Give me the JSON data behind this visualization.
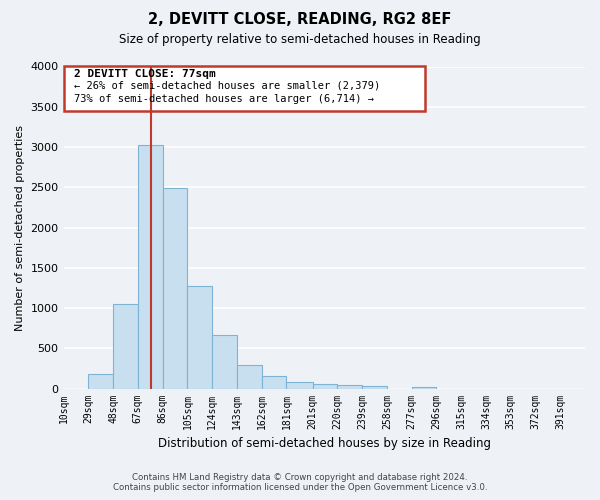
{
  "title": "2, DEVITT CLOSE, READING, RG2 8EF",
  "subtitle": "Size of property relative to semi-detached houses in Reading",
  "xlabel": "Distribution of semi-detached houses by size in Reading",
  "ylabel": "Number of semi-detached properties",
  "bar_color": "#c8dff0",
  "bar_edge_color": "#7fb3d3",
  "background_color": "#eef2f7",
  "grid_color": "#ffffff",
  "categories": [
    "10sqm",
    "29sqm",
    "48sqm",
    "67sqm",
    "86sqm",
    "105sqm",
    "124sqm",
    "143sqm",
    "162sqm",
    "181sqm",
    "201sqm",
    "220sqm",
    "239sqm",
    "258sqm",
    "277sqm",
    "296sqm",
    "315sqm",
    "334sqm",
    "353sqm",
    "372sqm",
    "391sqm"
  ],
  "values": [
    0,
    175,
    1050,
    3025,
    2490,
    1275,
    660,
    295,
    155,
    85,
    60,
    40,
    30,
    0,
    25,
    0,
    0,
    0,
    0,
    0,
    0
  ],
  "ylim": [
    0,
    4000
  ],
  "yticks": [
    0,
    500,
    1000,
    1500,
    2000,
    2500,
    3000,
    3500,
    4000
  ],
  "annotation_title": "2 DEVITT CLOSE: 77sqm",
  "annotation_line1": "← 26% of semi-detached houses are smaller (2,379)",
  "annotation_line2": "73% of semi-detached houses are larger (6,714) →",
  "box_color": "#c0392b",
  "line_color": "#c0392b",
  "footer1": "Contains HM Land Registry data © Crown copyright and database right 2024.",
  "footer2": "Contains public sector information licensed under the Open Government Licence v3.0.",
  "bin_edges": [
    10,
    29,
    48,
    67,
    86,
    105,
    124,
    143,
    162,
    181,
    201,
    220,
    239,
    258,
    277,
    296,
    315,
    334,
    353,
    372,
    391,
    410
  ]
}
